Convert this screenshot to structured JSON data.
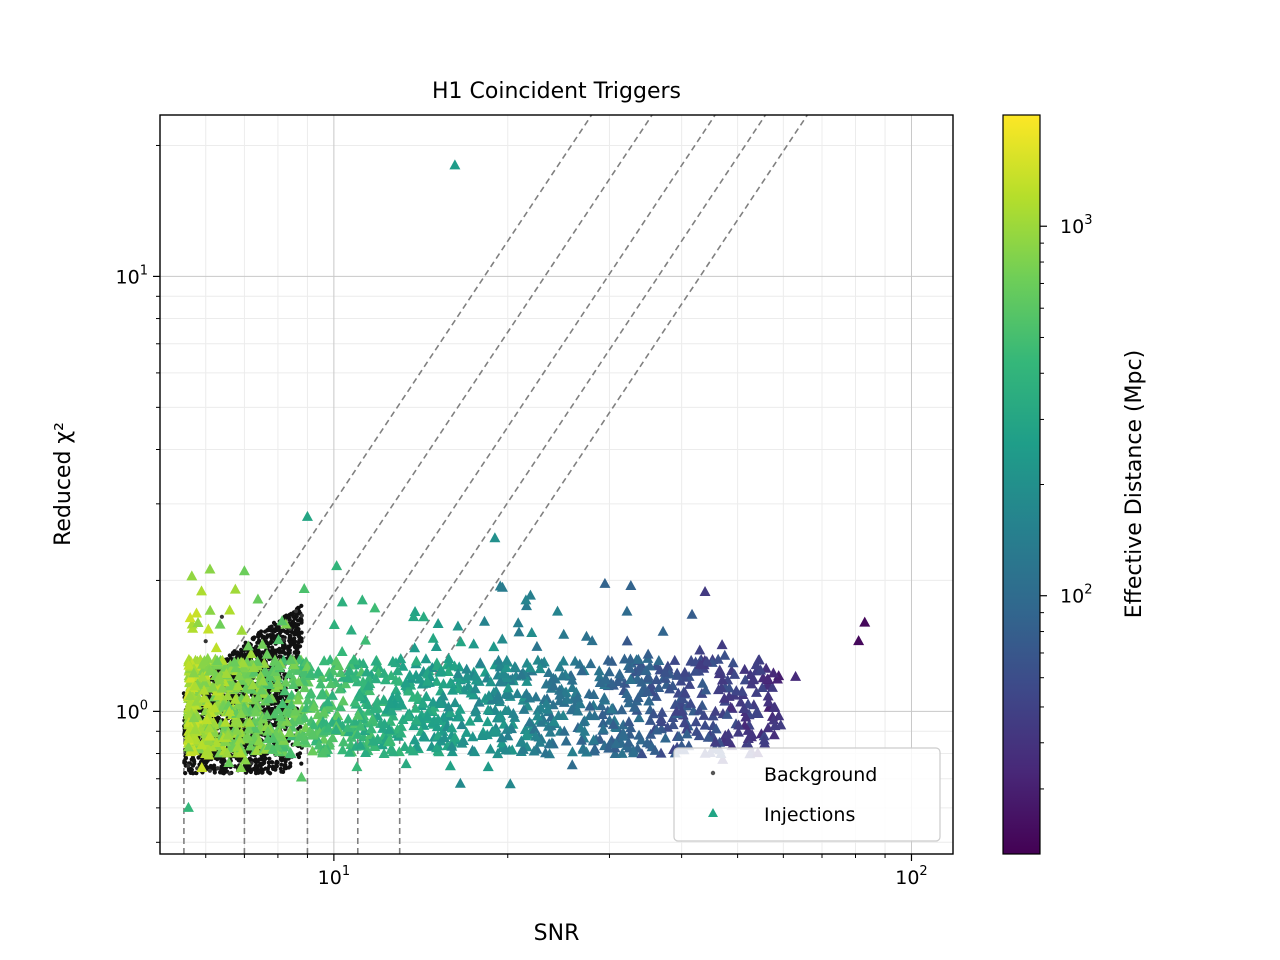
{
  "chart_data": {
    "type": "scatter",
    "title": "H1 Coincident Triggers",
    "xlabel": "SNR",
    "ylabel": "Reduced χ²",
    "x_scale": "log",
    "y_scale": "log",
    "xlim": [
      5.0,
      118
    ],
    "ylim": [
      0.47,
      23.5
    ],
    "x_ticks": [
      {
        "value": 10,
        "base": "10",
        "exp": "1"
      },
      {
        "value": 100,
        "base": "10",
        "exp": "2"
      }
    ],
    "y_ticks": [
      {
        "value": 1,
        "base": "10",
        "exp": "0"
      },
      {
        "value": 10,
        "base": "10",
        "exp": "1"
      }
    ],
    "grid": true,
    "legend": {
      "placement": "lower right",
      "entries": [
        {
          "label": "Background",
          "marker": "dot",
          "color": "#555555"
        },
        {
          "label": "Injections",
          "marker": "triangle",
          "color": "#21a585"
        }
      ]
    },
    "colorbar": {
      "label": "Effective Distance (Mpc)",
      "scale": "log",
      "range": [
        20,
        2000
      ],
      "ticks": [
        {
          "value": 100,
          "base": "10",
          "exp": "2"
        },
        {
          "value": 1000,
          "base": "10",
          "exp": "3"
        }
      ],
      "colormap": [
        "#440154",
        "#482878",
        "#3e4989",
        "#31688e",
        "#26828e",
        "#1f9e89",
        "#35b779",
        "#6ece58",
        "#b5de2b",
        "#fde725"
      ]
    },
    "threshold_curves": {
      "style": "dashed",
      "color": "#808080",
      "snr_thresholds": [
        5.5,
        7.0,
        9.0,
        11.0,
        13.0
      ]
    },
    "background": {
      "description_region": "dense cluster",
      "snr_range": [
        5.5,
        8.8
      ],
      "chisq_range": [
        0.72,
        1.8
      ],
      "sample_points": [
        [
          5.6,
          0.75
        ],
        [
          5.8,
          0.74
        ],
        [
          6.1,
          0.73
        ],
        [
          6.3,
          0.74
        ],
        [
          6.6,
          0.72
        ],
        [
          7.2,
          0.76
        ],
        [
          8.6,
          1.7
        ],
        [
          8.8,
          1.66
        ],
        [
          8.4,
          1.55
        ],
        [
          8.2,
          1.46
        ],
        [
          6.0,
          1.45
        ],
        [
          6.4,
          1.65
        ]
      ]
    },
    "injections": {
      "sample_points": [
        {
          "snr": 16.2,
          "chisq": 18.0,
          "dist": 250
        },
        {
          "snr": 9.0,
          "chisq": 2.8,
          "dist": 300
        },
        {
          "snr": 19.0,
          "chisq": 2.5,
          "dist": 200
        },
        {
          "snr": 7.0,
          "chisq": 2.1,
          "dist": 700
        },
        {
          "snr": 11.2,
          "chisq": 1.8,
          "dist": 400
        },
        {
          "snr": 21.5,
          "chisq": 1.8,
          "dist": 160
        },
        {
          "snr": 83.0,
          "chisq": 1.6,
          "dist": 22
        },
        {
          "snr": 81.0,
          "chisq": 1.45,
          "dist": 22
        },
        {
          "snr": 5.6,
          "chisq": 0.6,
          "dist": 420
        },
        {
          "snr": 63.0,
          "chisq": 1.2,
          "dist": 35
        },
        {
          "snr": 58.0,
          "chisq": 1.02,
          "dist": 40
        },
        {
          "snr": 47.0,
          "chisq": 1.42,
          "dist": 45
        },
        {
          "snr": 43.0,
          "chisq": 1.38,
          "dist": 50
        },
        {
          "snr": 35.0,
          "chisq": 1.35,
          "dist": 80
        },
        {
          "snr": 28.0,
          "chisq": 1.45,
          "dist": 110
        },
        {
          "snr": 25.0,
          "chisq": 1.5,
          "dist": 130
        }
      ]
    }
  }
}
